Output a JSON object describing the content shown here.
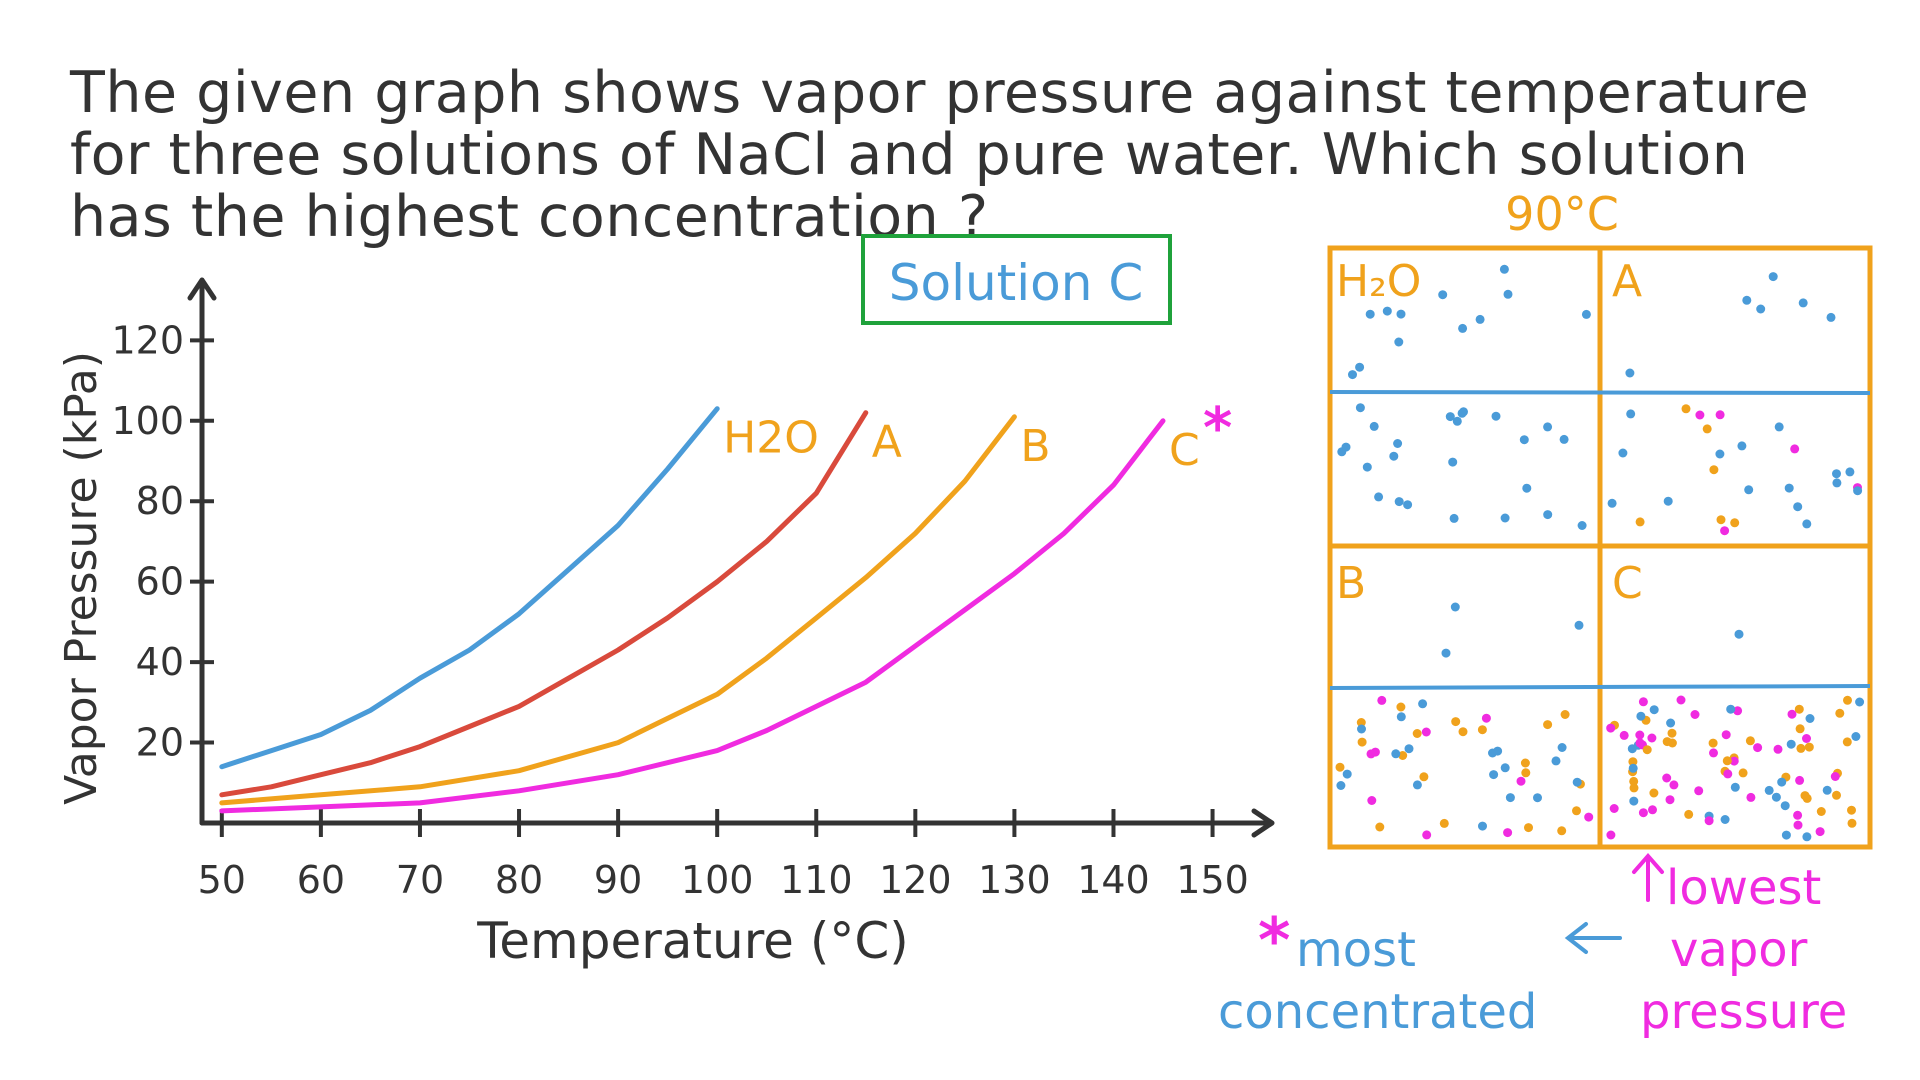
{
  "question": "The given graph shows vapor pressure against temperature for three solutions of NaCl and pure water. Which solution has the highest concentration ?",
  "answer_label": "Solution C",
  "colors": {
    "ink": "#333333",
    "h2o": "#4a9bd8",
    "a": "#d94a3c",
    "b": "#f0a21c",
    "c": "#f02be0",
    "answer_box": "#1fa23b",
    "panel": "#f0a21c",
    "particle_blue": "#4a9bd8",
    "particle_orange": "#f0a21c",
    "particle_pink": "#f02be0"
  },
  "chart_data": {
    "type": "line",
    "xlabel": "Temperature (°C)",
    "ylabel": "Vapor Pressure (kPa)",
    "xlim": [
      48,
      156
    ],
    "ylim": [
      0,
      135
    ],
    "x_ticks": [
      50,
      60,
      70,
      80,
      90,
      100,
      110,
      120,
      130,
      140,
      150
    ],
    "y_ticks": [
      20,
      40,
      60,
      80,
      100,
      120
    ],
    "grid": false,
    "series": [
      {
        "name": "H2O",
        "color_key": "h2o",
        "marker": "",
        "x": [
          50,
          55,
          60,
          65,
          70,
          75,
          80,
          85,
          90,
          95,
          100
        ],
        "y": [
          14,
          18,
          22,
          28,
          36,
          43,
          52,
          63,
          74,
          88,
          103
        ]
      },
      {
        "name": "A",
        "color_key": "a",
        "marker": "",
        "x": [
          50,
          55,
          60,
          65,
          70,
          75,
          80,
          85,
          90,
          95,
          100,
          105,
          110,
          115
        ],
        "y": [
          7,
          9,
          12,
          15,
          19,
          24,
          29,
          36,
          43,
          51,
          60,
          70,
          82,
          102
        ]
      },
      {
        "name": "B",
        "color_key": "b",
        "marker": "",
        "x": [
          50,
          60,
          70,
          80,
          90,
          95,
          100,
          105,
          110,
          115,
          120,
          125,
          130
        ],
        "y": [
          5,
          7,
          9,
          13,
          20,
          26,
          32,
          41,
          51,
          61,
          72,
          85,
          101
        ]
      },
      {
        "name": "C",
        "color_key": "c",
        "marker": "*",
        "x": [
          50,
          60,
          70,
          80,
          90,
          100,
          105,
          110,
          115,
          120,
          125,
          130,
          135,
          140,
          145
        ],
        "y": [
          3,
          4,
          5,
          8,
          12,
          18,
          23,
          29,
          35,
          44,
          53,
          62,
          72,
          84,
          100
        ]
      }
    ]
  },
  "diagram": {
    "title": "90°C",
    "panels": [
      {
        "label": "H₂O"
      },
      {
        "label": "A"
      },
      {
        "label": "B"
      },
      {
        "label": "C"
      }
    ],
    "annotation_lowest": "lowest vapor pressure",
    "annotation_lowest_lines": [
      "lowest",
      "vapor",
      "pressure"
    ],
    "annotation_most": "* most concentrated",
    "annotation_most_star": "*",
    "annotation_most_lines": [
      "most",
      "concentrated"
    ]
  }
}
